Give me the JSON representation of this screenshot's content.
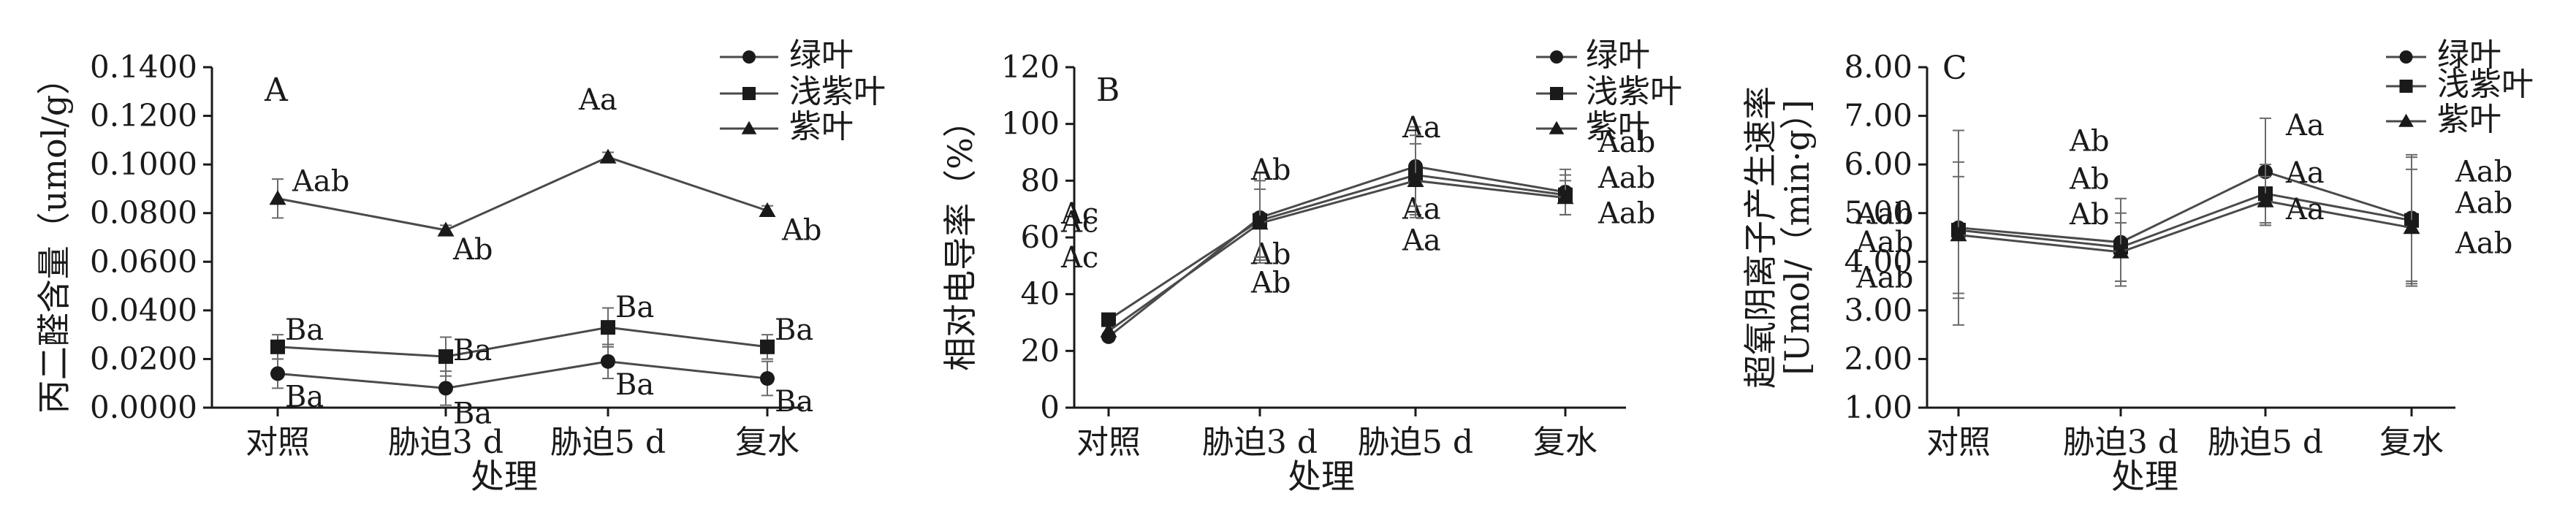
{
  "chart_data": [
    {
      "type": "line",
      "panel": "A",
      "categories": [
        "对照",
        "胁迫3 d",
        "胁迫5 d",
        "复水"
      ],
      "xlabel": "处理",
      "ylabel": "丙二醛含量（umol/g）",
      "ylim": [
        0,
        0.14
      ],
      "yticks": [
        "0.0000",
        "0.0200",
        "0.0400",
        "0.0600",
        "0.0800",
        "0.1000",
        "0.1200",
        "0.1400"
      ],
      "legend_position": "top-right",
      "series": [
        {
          "name": "绿叶",
          "marker": "circle",
          "values": [
            0.014,
            0.008,
            0.019,
            0.012
          ],
          "errors": [
            0.006,
            0.007,
            0.007,
            0.007
          ],
          "labels": [
            "Ba",
            "Ba",
            "Ba",
            "Ba"
          ]
        },
        {
          "name": "浅紫叶",
          "marker": "square",
          "values": [
            0.025,
            0.021,
            0.033,
            0.025
          ],
          "errors": [
            0.005,
            0.008,
            0.008,
            0.005
          ],
          "labels": [
            "Ba",
            "Ba",
            "Ba",
            "Ba"
          ]
        },
        {
          "name": "紫叶",
          "marker": "triangle",
          "values": [
            0.086,
            0.073,
            0.103,
            0.081
          ],
          "errors": [
            0.008,
            0.002,
            0.002,
            0.002
          ],
          "labels": [
            "Aab",
            "Ab",
            "Aa",
            "Ab"
          ]
        }
      ]
    },
    {
      "type": "line",
      "panel": "B",
      "categories": [
        "对照",
        "胁迫3 d",
        "胁迫5 d",
        "复水"
      ],
      "xlabel": "处理",
      "ylabel": "相对电导率（%）",
      "ylim": [
        0,
        120
      ],
      "yticks": [
        "0",
        "20",
        "40",
        "60",
        "80",
        "100",
        "120"
      ],
      "legend_position": "top-right",
      "series": [
        {
          "name": "绿叶",
          "marker": "circle",
          "values": [
            25,
            67,
            85,
            76
          ],
          "errors": [
            0,
            16,
            14,
            8
          ],
          "labels": [
            "Ac",
            "Ab",
            "Aa",
            "Aab"
          ]
        },
        {
          "name": "浅紫叶",
          "marker": "square",
          "values": [
            31,
            66,
            82,
            75
          ],
          "errors": [
            0,
            14,
            14,
            7
          ],
          "labels": [
            "Ac",
            "Ab",
            "Aa",
            "Aab"
          ]
        },
        {
          "name": "紫叶",
          "marker": "triangle",
          "values": [
            27,
            65,
            80,
            74
          ],
          "errors": [
            0,
            12,
            13,
            6
          ],
          "labels": [
            "Ac",
            "Ab",
            "Aa",
            "Aab"
          ]
        }
      ]
    },
    {
      "type": "line",
      "panel": "C",
      "categories": [
        "对照",
        "胁迫3 d",
        "胁迫5 d",
        "复水"
      ],
      "xlabel": "处理",
      "ylabel_line1": "超氧阴离子产生速率",
      "ylabel_line2": "[Umol/（min·g）]",
      "ylim": [
        1,
        8
      ],
      "yticks": [
        "1.00",
        "2.00",
        "3.00",
        "4.00",
        "5.00",
        "6.00",
        "7.00",
        "8.00"
      ],
      "legend_position": "top-right",
      "series": [
        {
          "name": "绿叶",
          "marker": "circle",
          "values": [
            4.7,
            4.4,
            5.85,
            4.9
          ],
          "errors": [
            2.0,
            0.9,
            1.1,
            1.3
          ],
          "labels": [
            "Aab",
            "Ab",
            "Aa",
            "Aab"
          ]
        },
        {
          "name": "浅紫叶",
          "marker": "square",
          "values": [
            4.65,
            4.3,
            5.4,
            4.85
          ],
          "errors": [
            1.4,
            0.7,
            0.6,
            1.3
          ],
          "labels": [
            "Aab",
            "Ab",
            "Aa",
            "Aab"
          ]
        },
        {
          "name": "紫叶",
          "marker": "triangle",
          "values": [
            4.55,
            4.2,
            5.25,
            4.7
          ],
          "errors": [
            1.2,
            0.6,
            0.5,
            1.2
          ],
          "labels": [
            "Aab",
            "Ab",
            "Aa",
            "Aab"
          ]
        }
      ]
    }
  ]
}
